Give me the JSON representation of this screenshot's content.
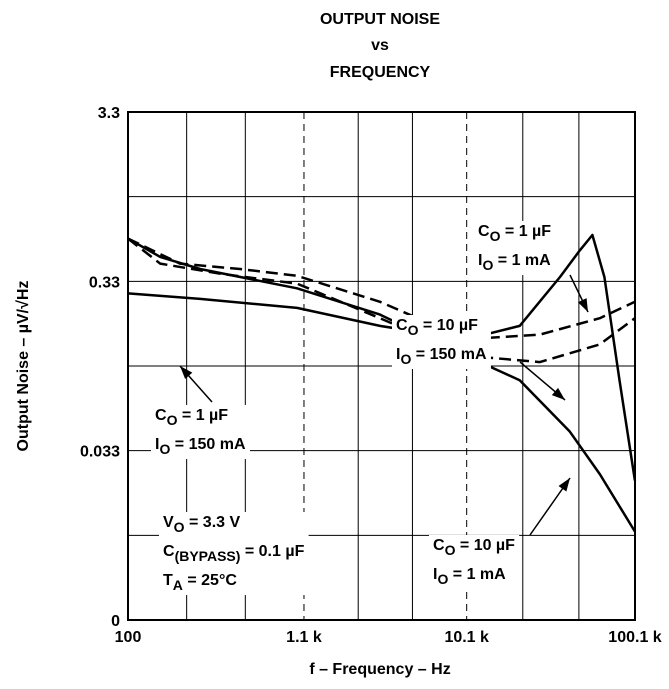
{
  "chart_data": {
    "type": "line",
    "title": [
      "OUTPUT NOISE",
      "vs",
      "FREQUENCY"
    ],
    "xlabel": "f – Frequency – Hz",
    "ylabel": "Output Noise – µV/√Hz",
    "xscale": "log",
    "yscale": "log",
    "grid": true,
    "xlim": [
      100,
      100100
    ],
    "xticks": [
      100,
      {
        "value": 1100,
        "label": "1.1 k"
      },
      {
        "value": 10100,
        "label": "10.1 k"
      },
      {
        "value": 100100,
        "label": "100.1 k"
      }
    ],
    "ylim": [
      0.0033,
      3.3
    ],
    "yticks": [
      {
        "value": 0.0033,
        "label": "0"
      },
      0.033,
      0.33,
      3.3
    ],
    "series": [
      {
        "color": "#000000",
        "dash": false,
        "x": [
          100,
          155,
          267,
          1000,
          3100,
          10000,
          20800,
          41000,
          62000,
          100000
        ],
        "values": [
          0.59,
          0.46,
          0.39,
          0.3,
          0.21,
          0.12,
          0.086,
          0.043,
          0.024,
          0.011
        ]
      },
      {
        "color": "#000000",
        "dash": false,
        "x": [
          100,
          267,
          1000,
          3100,
          10000,
          20800,
          36000,
          47000,
          56000,
          66000,
          81000,
          100000
        ],
        "values": [
          0.28,
          0.26,
          0.23,
          0.18,
          0.15,
          0.18,
          0.35,
          0.5,
          0.62,
          0.35,
          0.086,
          0.022
        ]
      },
      {
        "color": "#000000",
        "dash": true,
        "x": [
          100,
          203,
          460,
          1000,
          3100,
          10000,
          27400,
          62000,
          100000
        ],
        "values": [
          0.59,
          0.42,
          0.39,
          0.356,
          0.25,
          0.15,
          0.16,
          0.2,
          0.25
        ]
      },
      {
        "color": "#000000",
        "dash": true,
        "x": [
          100,
          155,
          350,
          1000,
          3100,
          10000,
          27400,
          62000,
          100000
        ],
        "values": [
          0.59,
          0.42,
          0.366,
          0.32,
          0.2,
          0.12,
          0.11,
          0.14,
          0.2
        ]
      }
    ],
    "annotations": [
      {
        "lines": [
          [
            "C",
            "O",
            " = 1 µF"
          ],
          [
            "I",
            "O",
            " = 1 mA"
          ]
        ]
      },
      {
        "lines": [
          [
            "C",
            "O",
            " = 10 µF"
          ],
          [
            "I",
            "O",
            " = 150 mA"
          ]
        ]
      },
      {
        "lines": [
          [
            "C",
            "O",
            " = 1 µF"
          ],
          [
            "I",
            "O",
            " = 150 mA"
          ]
        ]
      },
      {
        "lines": [
          [
            "V",
            "O",
            " = 3.3 V"
          ],
          [
            "C",
            "(BYPASS)",
            " = 0.1 µF"
          ],
          [
            "T",
            "A",
            " = 25°C"
          ]
        ]
      },
      {
        "lines": [
          [
            "C",
            "O",
            " = 10 µF"
          ],
          [
            "I",
            "O",
            " = 1 mA"
          ]
        ]
      }
    ]
  }
}
